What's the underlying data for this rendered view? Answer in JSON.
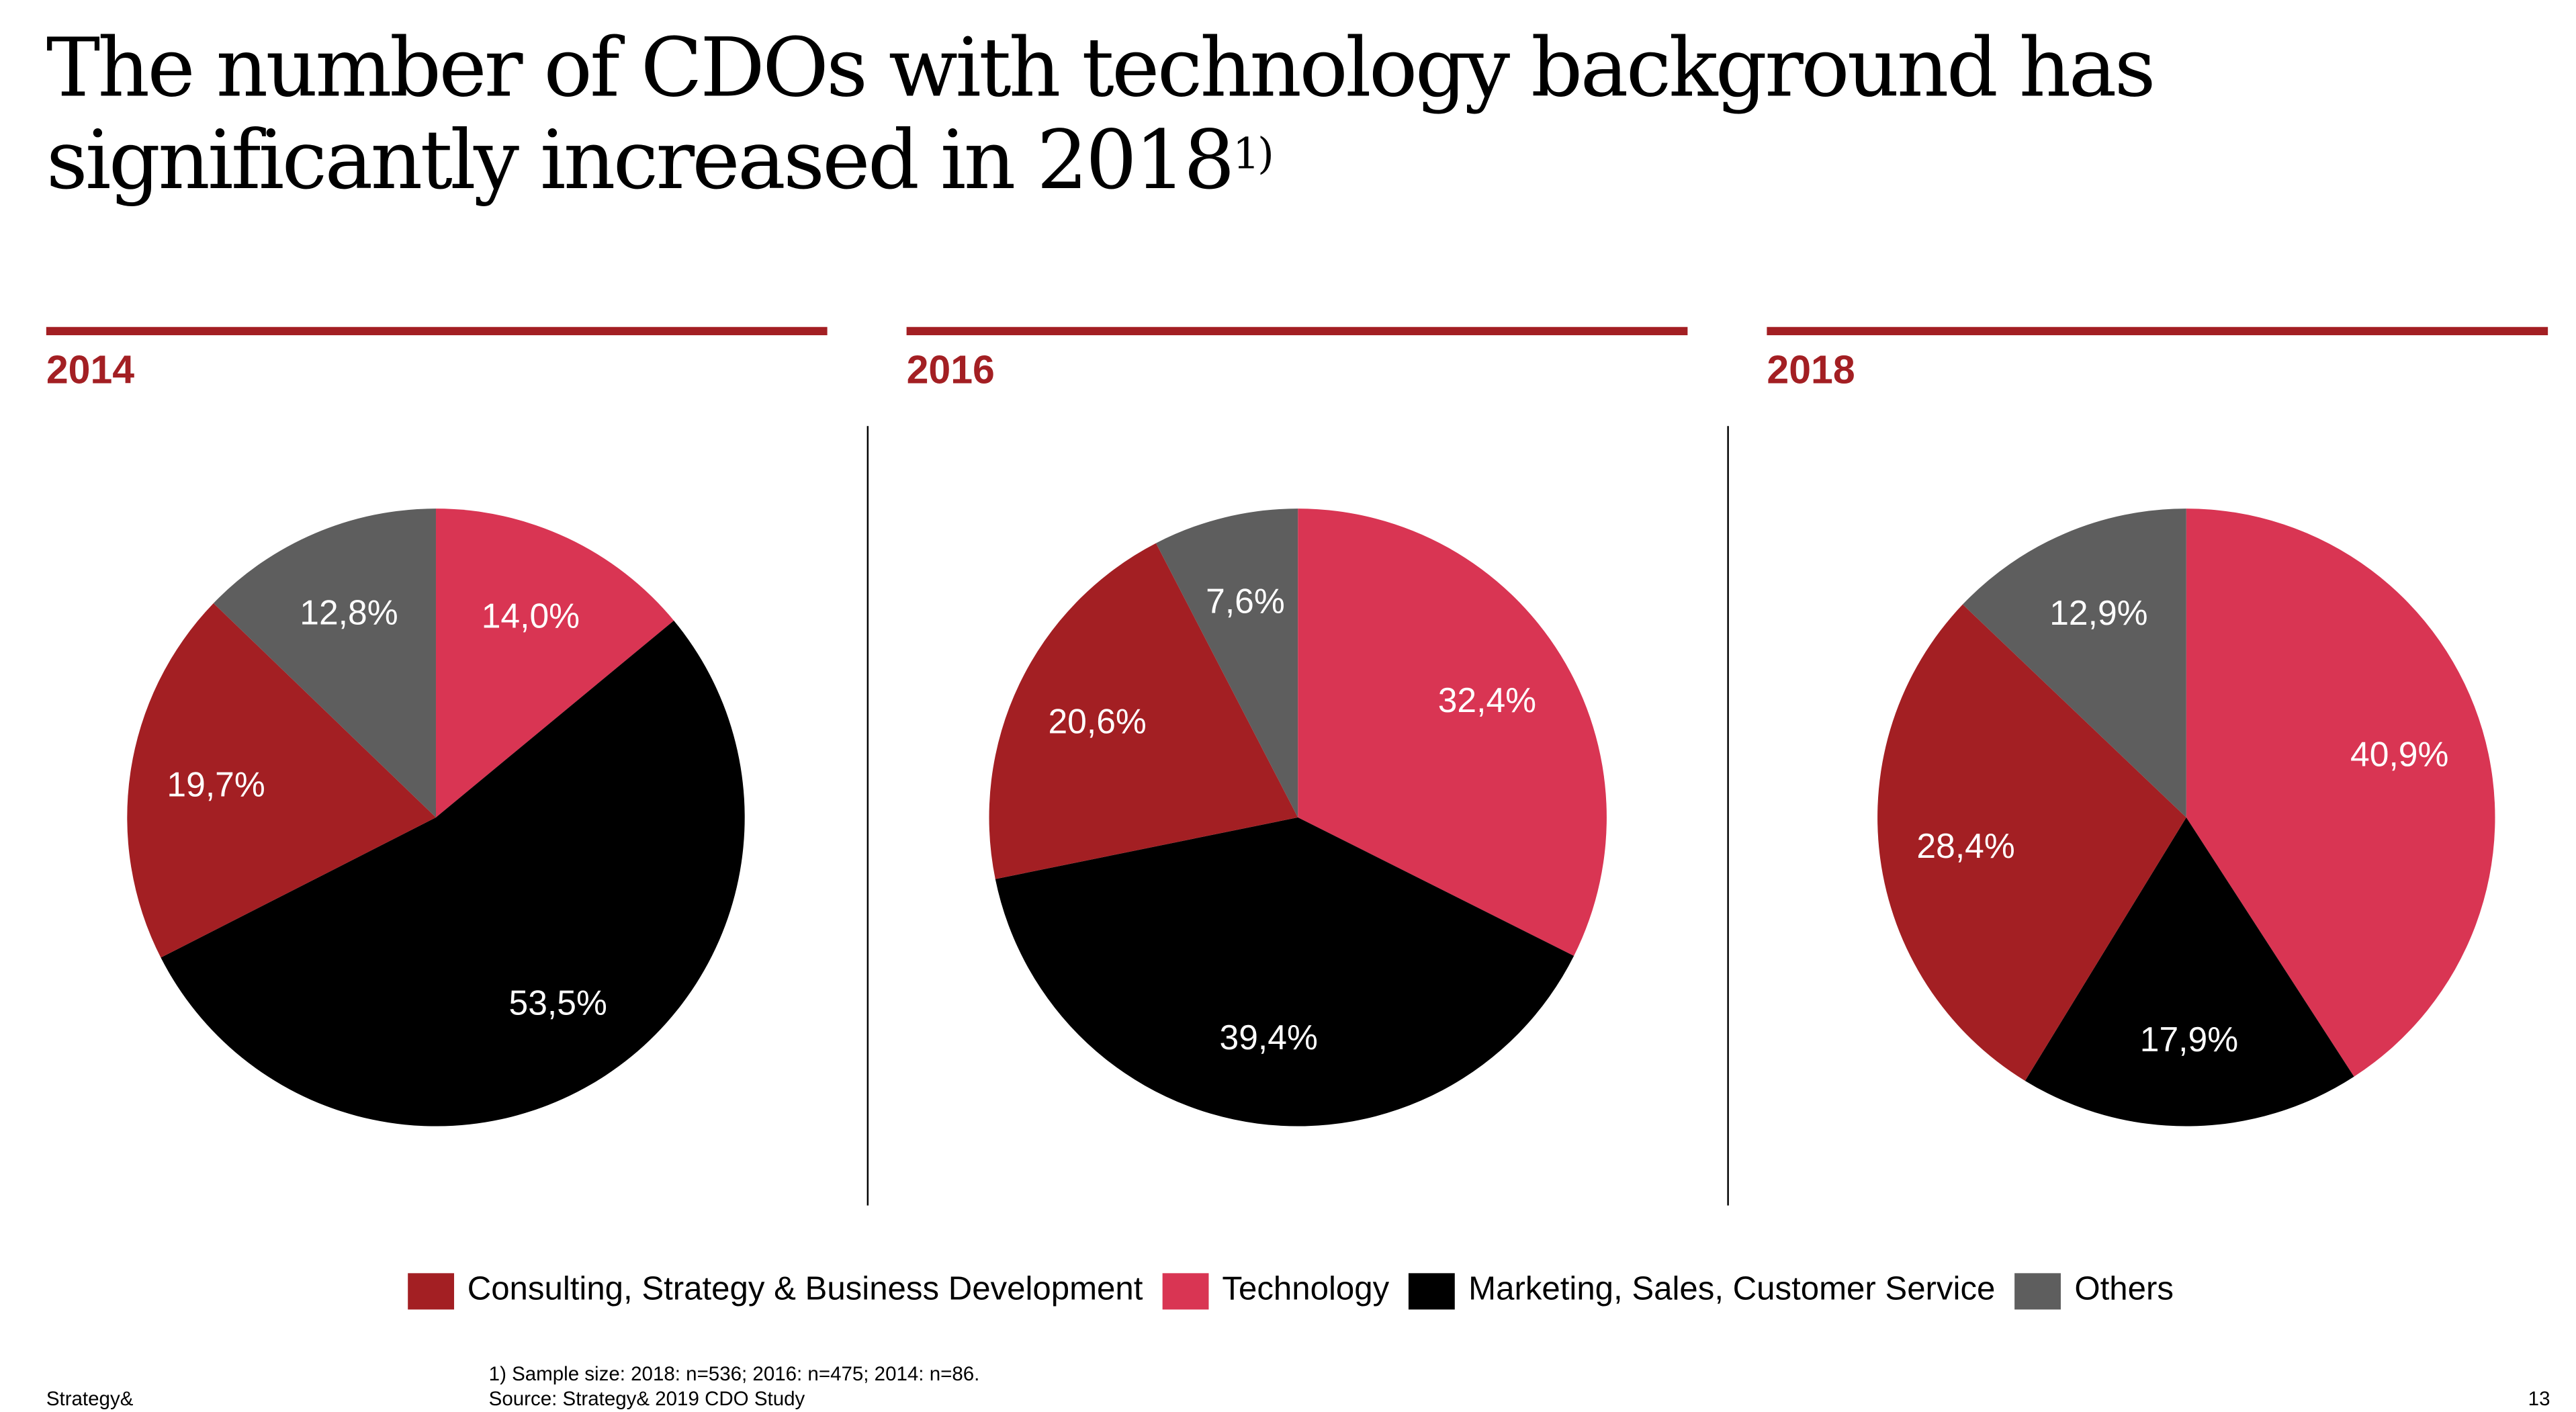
{
  "title": {
    "text": "The number of CDOs with technology background has significantly increased in 2018",
    "footnote_marker": "1)"
  },
  "colors": {
    "consulting": "#A31F23",
    "technology": "#D93553",
    "marketing": "#000000",
    "others": "#5E5E5E",
    "accent": "#A31F23"
  },
  "chart_data": [
    {
      "type": "pie",
      "title": "2014",
      "order": "clockwise from top",
      "slices": [
        {
          "label": "Technology",
          "value": 14.0,
          "text": "14,0%"
        },
        {
          "label": "Marketing, Sales, Customer Service",
          "value": 53.5,
          "text": "53,5%"
        },
        {
          "label": "Consulting, Strategy & Business Development",
          "value": 19.7,
          "text": "19,7%"
        },
        {
          "label": "Others",
          "value": 12.8,
          "text": "12,8%"
        }
      ]
    },
    {
      "type": "pie",
      "title": "2016",
      "order": "clockwise from top",
      "slices": [
        {
          "label": "Technology",
          "value": 32.4,
          "text": "32,4%"
        },
        {
          "label": "Marketing, Sales, Customer Service",
          "value": 39.4,
          "text": "39,4%"
        },
        {
          "label": "Consulting, Strategy & Business Development",
          "value": 20.6,
          "text": "20,6%"
        },
        {
          "label": "Others",
          "value": 7.6,
          "text": "7,6%"
        }
      ]
    },
    {
      "type": "pie",
      "title": "2018",
      "order": "clockwise from top",
      "slices": [
        {
          "label": "Technology",
          "value": 40.9,
          "text": "40,9%"
        },
        {
          "label": "Marketing, Sales, Customer Service",
          "value": 17.9,
          "text": "17,9%"
        },
        {
          "label": "Consulting, Strategy & Business Development",
          "value": 28.4,
          "text": "28,4%"
        },
        {
          "label": "Others",
          "value": 12.9,
          "text": "12,9%"
        }
      ]
    }
  ],
  "legend": [
    {
      "label": "Consulting, Strategy & Business Development",
      "color": "#A31F23"
    },
    {
      "label": "Technology",
      "color": "#D93553"
    },
    {
      "label": "Marketing, Sales, Customer Service",
      "color": "#000000"
    },
    {
      "label": "Others",
      "color": "#5E5E5E"
    }
  ],
  "legend_position": "bottom",
  "footer": {
    "note": "1) Sample size: 2018: n=536; 2016: n=475; 2014: n=86.",
    "source": "Source: Strategy& 2019 CDO Study",
    "brand": "Strategy&",
    "page": "13"
  }
}
